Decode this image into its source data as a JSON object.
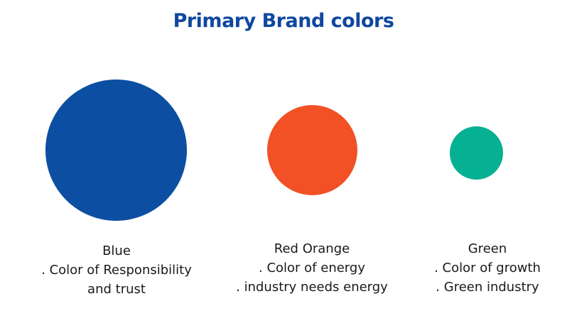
{
  "title": "Primary Brand colors",
  "colors": [
    {
      "name": "Blue",
      "hex": "#0c4ea2",
      "lines": [
        ". Color of  Responsibility",
        "and trust"
      ]
    },
    {
      "name": "Red Orange",
      "hex": "#f15125",
      "lines": [
        ". Color of energy",
        ". industry needs energy"
      ]
    },
    {
      "name": "Green",
      "hex": "#06b092",
      "lines": [
        ". Color of growth",
        ". Green industry"
      ]
    }
  ]
}
